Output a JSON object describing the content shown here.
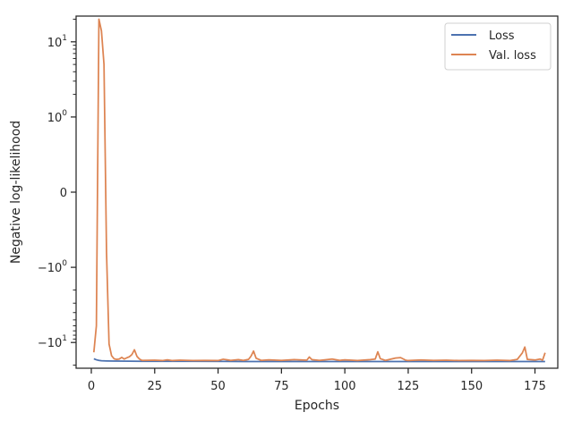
{
  "chart_data": {
    "type": "line",
    "xlabel": "Epochs",
    "ylabel": "Negative log-likelihood",
    "xlim": [
      -6,
      184
    ],
    "ylim": [
      -22,
      22
    ],
    "y_scale": "symlog",
    "y_linthresh": 1,
    "x_ticks": [
      0,
      25,
      50,
      75,
      100,
      125,
      150,
      175
    ],
    "x_tick_labels": [
      "0",
      "25",
      "50",
      "75",
      "100",
      "125",
      "150",
      "175"
    ],
    "y_ticks": [
      10,
      1,
      0,
      -1,
      -10
    ],
    "y_tick_labels": [
      {
        "base": "10",
        "exp": "1"
      },
      {
        "base": "10",
        "exp": "0"
      },
      {
        "base": "0",
        "exp": ""
      },
      {
        "base": "−10",
        "exp": "0"
      },
      {
        "base": "−10",
        "exp": "1"
      }
    ],
    "grid": false,
    "legend_position": "top-right",
    "colors": {
      "loss": "#4c72b0",
      "val_loss": "#dd8452",
      "axes": "#262626"
    },
    "series": [
      {
        "name": "Loss",
        "color": "#4c72b0",
        "points": [
          [
            1,
            -16.5
          ],
          [
            2,
            -17.0
          ],
          [
            3,
            -17.3
          ],
          [
            4,
            -17.5
          ],
          [
            6,
            -17.6
          ],
          [
            10,
            -17.7
          ],
          [
            20,
            -17.8
          ],
          [
            40,
            -17.8
          ],
          [
            60,
            -17.9
          ],
          [
            80,
            -17.9
          ],
          [
            100,
            -17.9
          ],
          [
            120,
            -17.9
          ],
          [
            140,
            -17.9
          ],
          [
            160,
            -17.9
          ],
          [
            179,
            -17.9
          ]
        ]
      },
      {
        "name": "Val. loss",
        "color": "#dd8452",
        "points": [
          [
            1,
            -13.5
          ],
          [
            2,
            -6
          ],
          [
            3,
            20
          ],
          [
            4,
            14
          ],
          [
            5,
            5
          ],
          [
            6,
            -0.8
          ],
          [
            7,
            -10.5
          ],
          [
            8,
            -15
          ],
          [
            9,
            -16.5
          ],
          [
            10,
            -16.8
          ],
          [
            11,
            -16.6
          ],
          [
            12,
            -15.8
          ],
          [
            13,
            -16.6
          ],
          [
            14,
            -16.0
          ],
          [
            15,
            -15.5
          ],
          [
            16,
            -14.5
          ],
          [
            17,
            -12.5
          ],
          [
            18,
            -15.3
          ],
          [
            19,
            -16.6
          ],
          [
            20,
            -17.3
          ],
          [
            25,
            -17.2
          ],
          [
            28,
            -17.4
          ],
          [
            30,
            -17.0
          ],
          [
            32,
            -17.4
          ],
          [
            35,
            -17.2
          ],
          [
            40,
            -17.4
          ],
          [
            45,
            -17.3
          ],
          [
            50,
            -17.4
          ],
          [
            52,
            -16.7
          ],
          [
            55,
            -17.3
          ],
          [
            58,
            -16.9
          ],
          [
            60,
            -17.3
          ],
          [
            62,
            -16.8
          ],
          [
            63,
            -15.2
          ],
          [
            64,
            -13.0
          ],
          [
            65,
            -16.2
          ],
          [
            67,
            -17.3
          ],
          [
            70,
            -17.0
          ],
          [
            75,
            -17.3
          ],
          [
            80,
            -16.9
          ],
          [
            85,
            -17.2
          ],
          [
            86,
            -15.6
          ],
          [
            87,
            -16.9
          ],
          [
            90,
            -17.3
          ],
          [
            95,
            -16.6
          ],
          [
            98,
            -17.3
          ],
          [
            100,
            -17.0
          ],
          [
            105,
            -17.4
          ],
          [
            110,
            -16.9
          ],
          [
            112,
            -16.6
          ],
          [
            113,
            -13.3
          ],
          [
            114,
            -16.4
          ],
          [
            116,
            -17.3
          ],
          [
            120,
            -16.1
          ],
          [
            122,
            -15.9
          ],
          [
            124,
            -17.2
          ],
          [
            125,
            -17.4
          ],
          [
            130,
            -17.1
          ],
          [
            135,
            -17.3
          ],
          [
            140,
            -17.2
          ],
          [
            145,
            -17.4
          ],
          [
            150,
            -17.3
          ],
          [
            155,
            -17.4
          ],
          [
            160,
            -17.2
          ],
          [
            165,
            -17.4
          ],
          [
            168,
            -16.8
          ],
          [
            170,
            -13.8
          ],
          [
            171,
            -11.5
          ],
          [
            172,
            -16.8
          ],
          [
            175,
            -17.1
          ],
          [
            177,
            -16.6
          ],
          [
            178,
            -17.2
          ],
          [
            179,
            -13.7
          ]
        ]
      }
    ]
  }
}
